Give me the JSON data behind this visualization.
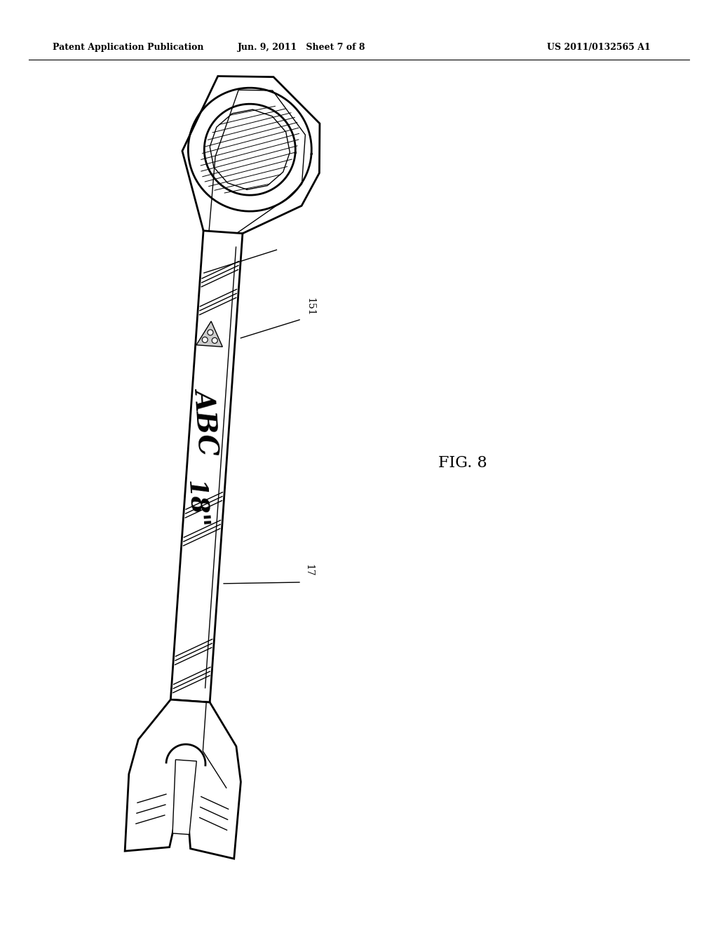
{
  "background_color": "#ffffff",
  "header_left": "Patent Application Publication",
  "header_center": "Jun. 9, 2011   Sheet 7 of 8",
  "header_right": "US 2011/0132565 A1",
  "header_fontsize": 10,
  "fig_label": "FIG. 8",
  "fig_label_fontsize": 16,
  "ref_151_label": "151",
  "ref_17_label": "17"
}
